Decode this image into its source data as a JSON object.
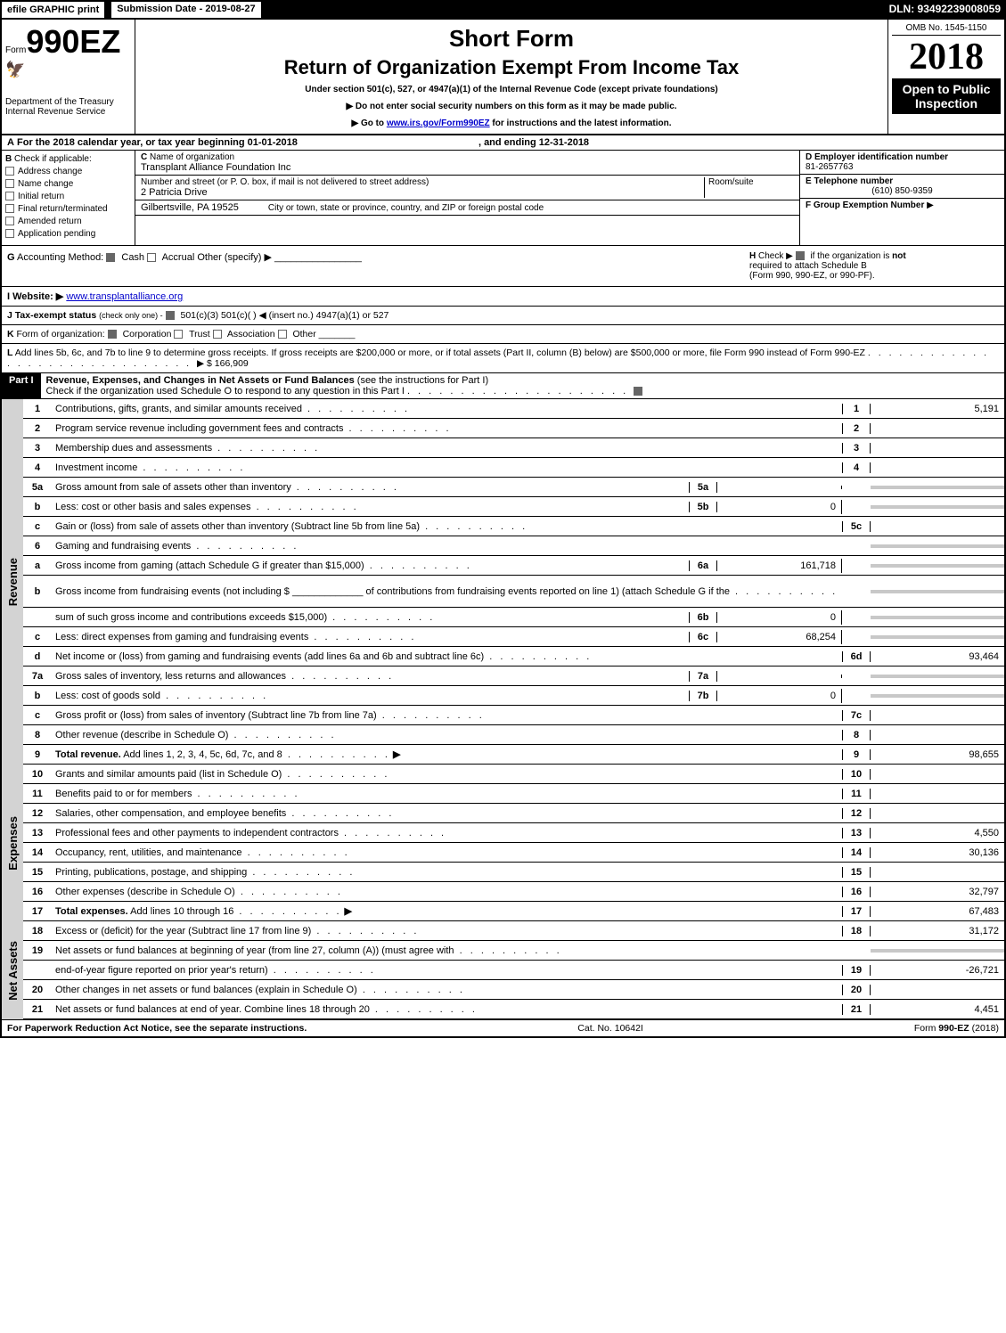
{
  "topbar": {
    "efile": "efile GRAPHIC print",
    "subdate": "Submission Date - 2019-08-27",
    "dln": "DLN: 93492239008059"
  },
  "header": {
    "form_prefix": "Form",
    "form_num": "990EZ",
    "short": "Short Form",
    "title": "Return of Organization Exempt From Income Tax",
    "subtitle": "Under section 501(c), 527, or 4947(a)(1) of the Internal Revenue Code (except private foundations)",
    "note1": "▶ Do not enter social security numbers on this form as it may be made public.",
    "note2_pre": "▶ Go to ",
    "note2_link": "www.irs.gov/Form990EZ",
    "note2_post": " for instructions and the latest information.",
    "dept1": "Department of the Treasury",
    "dept2": "Internal Revenue Service",
    "omb": "OMB No. 1545-1150",
    "year": "2018",
    "open1": "Open to Public",
    "open2": "Inspection"
  },
  "lineA": {
    "prefix": "A",
    "text1": "For the 2018 calendar year, or tax year beginning 01-01-2018",
    "text2": ", and ending 12-31-2018"
  },
  "checkB": {
    "label": "B",
    "title": "Check if applicable:",
    "items": [
      "Address change",
      "Name change",
      "Initial return",
      "Final return/terminated",
      "Amended return",
      "Application pending"
    ]
  },
  "org": {
    "c_label": "C",
    "c_text": "Name of organization",
    "name": "Transplant Alliance Foundation Inc",
    "addr_label": "Number and street (or P. O. box, if mail is not delivered to street address)",
    "addr": "2 Patricia Drive",
    "room_label": "Room/suite",
    "city_label": "City or town, state or province, country, and ZIP or foreign postal code",
    "city": "Gilbertsville, PA  19525"
  },
  "right": {
    "d_label": "D Employer identification number",
    "ein": "81-2657763",
    "e_label": "E Telephone number",
    "phone": "(610) 850-9359",
    "f_label": "F Group Exemption Number",
    "f_arrow": "▶"
  },
  "g": {
    "label": "G",
    "text": "Accounting Method:",
    "cash": "Cash",
    "accrual": "Accrual",
    "other": "Other (specify) ▶"
  },
  "h": {
    "label": "H",
    "text1": "Check ▶",
    "text2": "if the organization is",
    "not": "not",
    "text3": "required to attach Schedule B",
    "text4": "(Form 990, 990-EZ, or 990-PF)."
  },
  "website": {
    "label": "I Website: ▶",
    "url": "www.transplantalliance.org"
  },
  "j": {
    "label": "J Tax-exempt status",
    "sub": "(check only one) -",
    "opts": "501(c)(3)   501(c)(  ) ◀ (insert no.)   4947(a)(1) or   527"
  },
  "k": {
    "label": "K",
    "text": "Form of organization:",
    "corp": "Corporation",
    "trust": "Trust",
    "assoc": "Association",
    "other": "Other"
  },
  "l": {
    "label": "L",
    "text": "Add lines 5b, 6c, and 7b to line 9 to determine gross receipts. If gross receipts are $200,000 or more, or if total assets (Part II, column (B) below) are $500,000 or more, file Form 990 instead of Form 990-EZ",
    "arrow": "▶",
    "amount": "$ 166,909"
  },
  "part1": {
    "hdr": "Part I",
    "title": "Revenue, Expenses, and Changes in Net Assets or Fund Balances",
    "sub": "(see the instructions for Part I)",
    "check_text": "Check if the organization used Schedule O to respond to any question in this Part I"
  },
  "sections": {
    "revenue": "Revenue",
    "expenses": "Expenses",
    "netassets": "Net Assets"
  },
  "rows": [
    {
      "n": "1",
      "desc": "Contributions, gifts, grants, and similar amounts received",
      "end_n": "1",
      "end_v": "5,191"
    },
    {
      "n": "2",
      "desc": "Program service revenue including government fees and contracts",
      "end_n": "2",
      "end_v": ""
    },
    {
      "n": "3",
      "desc": "Membership dues and assessments",
      "end_n": "3",
      "end_v": ""
    },
    {
      "n": "4",
      "desc": "Investment income",
      "end_n": "4",
      "end_v": ""
    },
    {
      "n": "5a",
      "desc": "Gross amount from sale of assets other than inventory",
      "mid_n": "5a",
      "mid_v": "",
      "shaded": true
    },
    {
      "n": "b",
      "desc": "Less: cost or other basis and sales expenses",
      "mid_n": "5b",
      "mid_v": "0",
      "shaded": true
    },
    {
      "n": "c",
      "desc": "Gain or (loss) from sale of assets other than inventory (Subtract line 5b from line 5a)",
      "end_n": "5c",
      "end_v": ""
    },
    {
      "n": "6",
      "desc": "Gaming and fundraising events",
      "shaded": true,
      "noend": true
    },
    {
      "n": "a",
      "desc": "Gross income from gaming (attach Schedule G if greater than $15,000)",
      "mid_n": "6a",
      "mid_v": "161,718",
      "shaded": true
    },
    {
      "n": "b",
      "desc": "Gross income from fundraising events (not including $ _____________ of contributions from fundraising events reported on line 1) (attach Schedule G if the",
      "shaded": true,
      "noend": true,
      "tall": true
    },
    {
      "n": "",
      "desc": "sum of such gross income and contributions exceeds $15,000)",
      "mid_n": "6b",
      "mid_v": "0",
      "shaded": true
    },
    {
      "n": "c",
      "desc": "Less: direct expenses from gaming and fundraising events",
      "mid_n": "6c",
      "mid_v": "68,254",
      "shaded": true
    },
    {
      "n": "d",
      "desc": "Net income or (loss) from gaming and fundraising events (add lines 6a and 6b and subtract line 6c)",
      "end_n": "6d",
      "end_v": "93,464"
    },
    {
      "n": "7a",
      "desc": "Gross sales of inventory, less returns and allowances",
      "mid_n": "7a",
      "mid_v": "",
      "shaded": true
    },
    {
      "n": "b",
      "desc": "Less: cost of goods sold",
      "mid_n": "7b",
      "mid_v": "0",
      "shaded": true
    },
    {
      "n": "c",
      "desc": "Gross profit or (loss) from sales of inventory (Subtract line 7b from line 7a)",
      "end_n": "7c",
      "end_v": ""
    },
    {
      "n": "8",
      "desc": "Other revenue (describe in Schedule O)",
      "end_n": "8",
      "end_v": ""
    },
    {
      "n": "9",
      "desc": "Total revenue. Add lines 1, 2, 3, 4, 5c, 6d, 7c, and 8",
      "end_n": "9",
      "end_v": "98,655",
      "bold": true,
      "arrow": true
    }
  ],
  "exp_rows": [
    {
      "n": "10",
      "desc": "Grants and similar amounts paid (list in Schedule O)",
      "end_n": "10",
      "end_v": ""
    },
    {
      "n": "11",
      "desc": "Benefits paid to or for members",
      "end_n": "11",
      "end_v": ""
    },
    {
      "n": "12",
      "desc": "Salaries, other compensation, and employee benefits",
      "end_n": "12",
      "end_v": ""
    },
    {
      "n": "13",
      "desc": "Professional fees and other payments to independent contractors",
      "end_n": "13",
      "end_v": "4,550"
    },
    {
      "n": "14",
      "desc": "Occupancy, rent, utilities, and maintenance",
      "end_n": "14",
      "end_v": "30,136"
    },
    {
      "n": "15",
      "desc": "Printing, publications, postage, and shipping",
      "end_n": "15",
      "end_v": ""
    },
    {
      "n": "16",
      "desc": "Other expenses (describe in Schedule O)",
      "end_n": "16",
      "end_v": "32,797"
    },
    {
      "n": "17",
      "desc": "Total expenses. Add lines 10 through 16",
      "end_n": "17",
      "end_v": "67,483",
      "bold": true,
      "arrow": true
    }
  ],
  "na_rows": [
    {
      "n": "18",
      "desc": "Excess or (deficit) for the year (Subtract line 17 from line 9)",
      "end_n": "18",
      "end_v": "31,172"
    },
    {
      "n": "19",
      "desc": "Net assets or fund balances at beginning of year (from line 27, column (A)) (must agree with",
      "noend": true,
      "shaded": true
    },
    {
      "n": "",
      "desc": "end-of-year figure reported on prior year's return)",
      "end_n": "19",
      "end_v": "-26,721"
    },
    {
      "n": "20",
      "desc": "Other changes in net assets or fund balances (explain in Schedule O)",
      "end_n": "20",
      "end_v": ""
    },
    {
      "n": "21",
      "desc": "Net assets or fund balances at end of year. Combine lines 18 through 20",
      "end_n": "21",
      "end_v": "4,451"
    }
  ],
  "footer": {
    "left": "For Paperwork Reduction Act Notice, see the separate instructions.",
    "mid": "Cat. No. 10642I",
    "right_pre": "Form ",
    "right_form": "990-EZ",
    "right_post": " (2018)"
  }
}
